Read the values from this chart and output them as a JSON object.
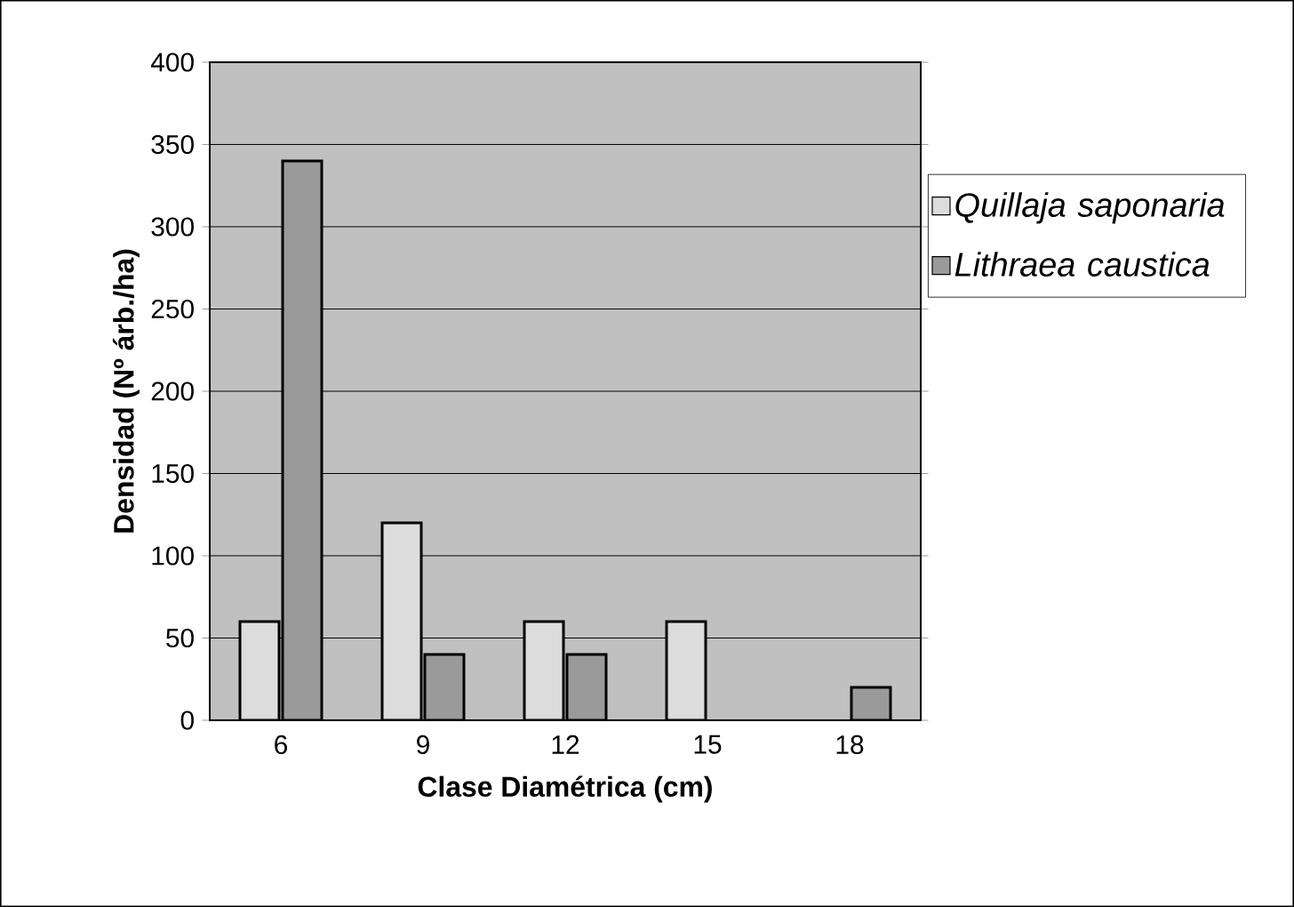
{
  "chart_data": {
    "type": "bar",
    "xlabel": "Clase Diamétrica (cm)",
    "ylabel": "Densidad (Nº árb./ha)",
    "categories": [
      "6",
      "9",
      "12",
      "15",
      "18"
    ],
    "series": [
      {
        "name": "Quillaja saponaria",
        "color": "#dcdcdc",
        "values": [
          60,
          120,
          60,
          60,
          null
        ]
      },
      {
        "name": "Lithraea caustica",
        "color": "#9a9a9a",
        "values": [
          340,
          40,
          40,
          null,
          20
        ]
      }
    ],
    "ylim": [
      0,
      400
    ],
    "yticks": [
      0,
      50,
      100,
      150,
      200,
      250,
      300,
      350,
      400
    ],
    "grid": "y",
    "legend": "right"
  }
}
